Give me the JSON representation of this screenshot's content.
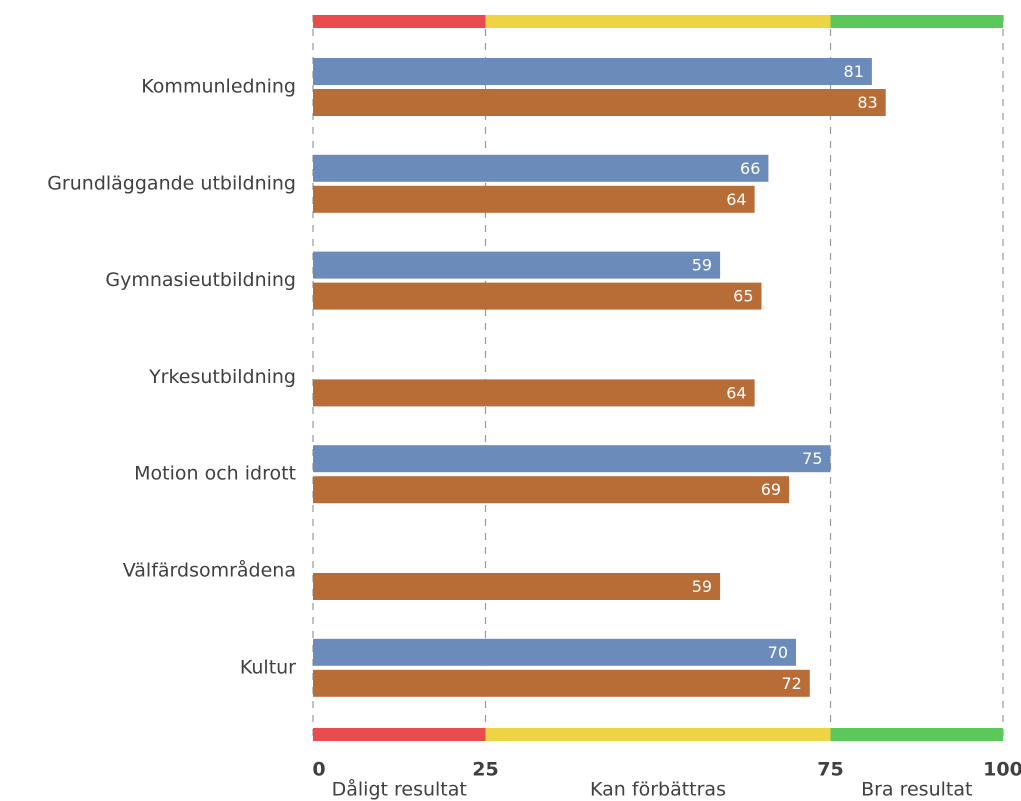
{
  "chart_data": {
    "type": "bar",
    "orientation": "horizontal",
    "categories": [
      "Kommunledning",
      "Grundläggande utbildning",
      "Gymnasieutbildning",
      "Yrkesutbildning",
      "Motion och idrott",
      "Välfärdsområdena",
      "Kultur"
    ],
    "series": [
      {
        "color": "#6b8cba",
        "values": [
          81,
          66,
          59,
          null,
          75,
          null,
          70
        ]
      },
      {
        "color": "#b86d36",
        "values": [
          83,
          64,
          65,
          64,
          69,
          59,
          72
        ]
      }
    ],
    "xlim": [
      0,
      100
    ],
    "xticks": [
      0,
      25,
      75,
      100
    ],
    "grid": true,
    "bands": [
      {
        "from": 0,
        "to": 25,
        "color": "#e84c4c",
        "label": "Dåligt resultat"
      },
      {
        "from": 25,
        "to": 75,
        "color": "#ecd444",
        "label": "Kan förbättras"
      },
      {
        "from": 75,
        "to": 100,
        "color": "#5cc85c",
        "label": "Bra resultat"
      }
    ]
  }
}
